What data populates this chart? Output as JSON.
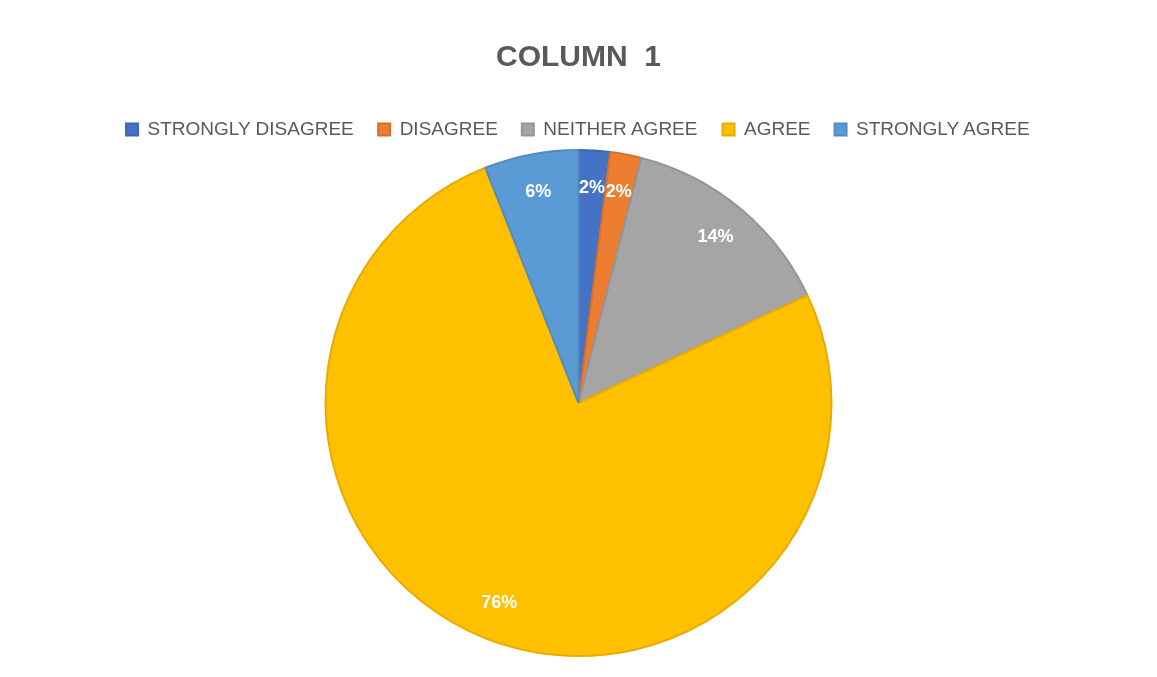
{
  "chart_data": {
    "type": "pie",
    "title": "COLUMN  1",
    "categories": [
      "STRONGLY DISAGREE",
      "DISAGREE",
      "NEITHER AGREE",
      "AGREE",
      "STRONGLY AGREE"
    ],
    "values": [
      2,
      2,
      14,
      76,
      6
    ],
    "value_labels": [
      "2%",
      "2%",
      "14%",
      "76%",
      "6%"
    ],
    "colors": [
      "#4472c4",
      "#ed7d31",
      "#a5a5a5",
      "#ffc000",
      "#5b9bd5"
    ],
    "legend": "top"
  }
}
